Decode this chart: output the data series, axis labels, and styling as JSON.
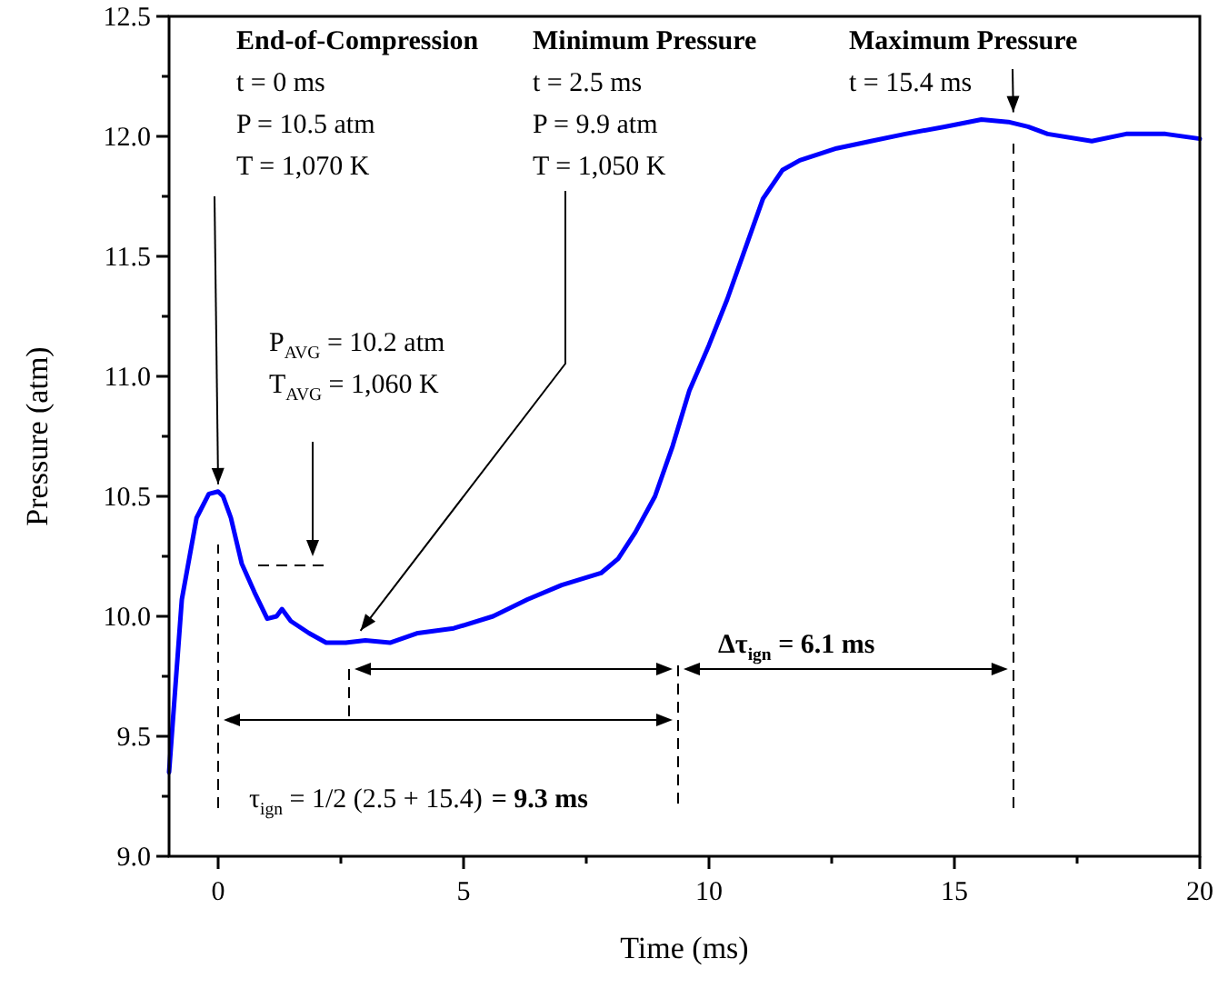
{
  "chart_data": {
    "type": "line",
    "xlabel": "Time (ms)",
    "ylabel": "Pressure (atm)",
    "xlim": [
      -1,
      20
    ],
    "ylim": [
      9,
      12.5
    ],
    "xticks": [
      0,
      {
        "value": 2.5,
        "label": null
      },
      5,
      {
        "value": 7.5,
        "label": null
      },
      10,
      {
        "value": 12.5,
        "label": null
      },
      15,
      {
        "value": 17.5,
        "label": null
      },
      20
    ],
    "yticks": [
      {
        "value": 9,
        "label": "9.0"
      },
      {
        "value": 9.25,
        "label": null
      },
      {
        "value": 9.5,
        "label": "9.5"
      },
      {
        "value": 9.75,
        "label": null
      },
      {
        "value": 10,
        "label": "10.0"
      },
      {
        "value": 10.25,
        "label": null
      },
      {
        "value": 10.5,
        "label": "10.5"
      },
      {
        "value": 10.75,
        "label": null
      },
      {
        "value": 11,
        "label": "11.0"
      },
      {
        "value": 11.25,
        "label": null
      },
      {
        "value": 11.5,
        "label": "11.5"
      },
      {
        "value": 11.75,
        "label": null
      },
      {
        "value": 12,
        "label": "12.0"
      },
      {
        "value": 12.25,
        "label": null
      },
      {
        "value": 12.5,
        "label": "12.5"
      }
    ],
    "grid": false,
    "series": [
      {
        "color": "#0000ff",
        "x": [
          -1,
          -0.74,
          -0.44,
          -0.19,
          0,
          0.1,
          0.26,
          0.48,
          0.74,
          1.0,
          1.19,
          1.3,
          1.48,
          1.85,
          2.2,
          2.6,
          3.0,
          3.5,
          4.07,
          4.8,
          5.6,
          6.3,
          7.0,
          7.8,
          8.15,
          8.5,
          8.9,
          9.26,
          9.6,
          10.0,
          10.37,
          10.7,
          11.1,
          11.5,
          11.85,
          12.6,
          13.3,
          14.0,
          14.8,
          15.55,
          16.1,
          16.5,
          16.9,
          17.8,
          18.5,
          19.3,
          20
        ],
        "values": [
          9.35,
          10.07,
          10.41,
          10.51,
          10.52,
          10.5,
          10.41,
          10.22,
          10.1,
          9.99,
          10.0,
          10.03,
          9.98,
          9.93,
          9.89,
          9.89,
          9.9,
          9.89,
          9.93,
          9.95,
          10.0,
          10.07,
          10.13,
          10.18,
          10.24,
          10.35,
          10.5,
          10.71,
          10.94,
          11.13,
          11.32,
          11.51,
          11.74,
          11.86,
          11.9,
          11.95,
          11.98,
          12.01,
          12.04,
          12.07,
          12.06,
          12.04,
          12.01,
          11.98,
          12.01,
          12.01,
          11.99
        ]
      }
    ],
    "ref_lines": [
      {
        "axis": "x",
        "value": 0,
        "line_style": "dashed"
      },
      {
        "axis": "x",
        "value": 9.37,
        "line_style": "dashed"
      },
      {
        "axis": "x",
        "value": 16.2,
        "line_style": "dashed"
      }
    ],
    "annotations": [
      {
        "text": "End-of-Compression\nt = 0 ms\nP = 10.5 atm\nT = 1,070 K",
        "x": 0,
        "y": 10.55
      },
      {
        "text": "Minimum Pressure\nt = 2.5 ms\nP = 9.9 atm\nT = 1,050 K",
        "x": 2.9,
        "y": 9.94
      },
      {
        "text": "Maximum Pressure\nt = 15.4 ms",
        "x": 16.2,
        "y": 12.1
      },
      "P$_{AVG}$ = 10.2 atm",
      "T$_{AVG}$ = 1,060 K",
      "τ$_{ign}$ = 1/2 (2.5 + 15.4)",
      "= 9.3 ms",
      "Δτ$_{ign}$ = 6.1 ms"
    ]
  }
}
